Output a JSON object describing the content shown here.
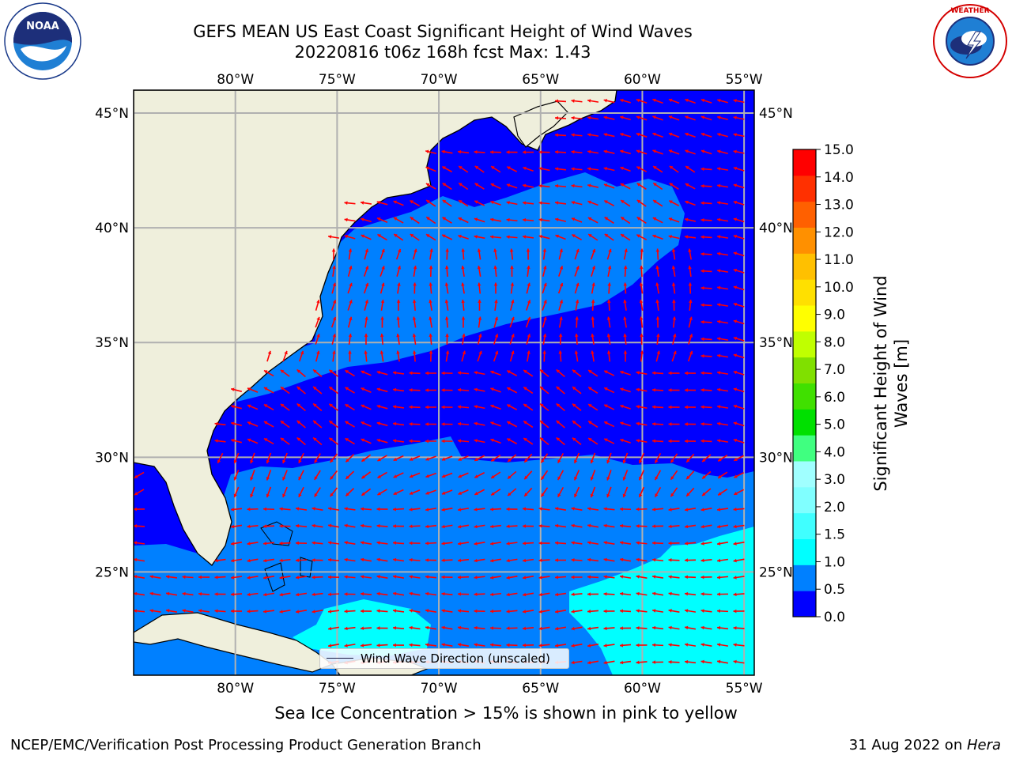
{
  "header": {
    "title_line1": "GEFS MEAN US East Coast Significant Height of Wind Waves",
    "title_line2": "20220816 t06z 168h fcst   Max: 1.43"
  },
  "logos": {
    "left": "noaa-logo",
    "right": "nws-logo"
  },
  "map": {
    "lon_labels": [
      "80°W",
      "75°W",
      "70°W",
      "65°W",
      "60°W",
      "55°W"
    ],
    "lat_labels": [
      "45°N",
      "40°N",
      "35°N",
      "30°N",
      "25°N"
    ],
    "lon_range": [
      -85,
      -54.5
    ],
    "lat_range": [
      20.5,
      46
    ],
    "colors": {
      "land": "#efefdc",
      "band_0_0_5": "#0000ff",
      "band_0_5_1": "#0080ff",
      "band_1_1_5": "#00ffff",
      "arrow": "#ff0000",
      "grid": "#b0b0b0"
    },
    "legend_label": "Wind Wave Direction (unscaled)"
  },
  "colorbar": {
    "label": "Significant Height of Wind Waves [m]",
    "ticks": [
      "0.0",
      "0.5",
      "1.0",
      "1.5",
      "2.0",
      "3.0",
      "4.0",
      "5.0",
      "6.0",
      "7.0",
      "8.0",
      "9.0",
      "10.0",
      "11.0",
      "12.0",
      "13.0",
      "14.0",
      "15.0"
    ],
    "colors": [
      "#0000ff",
      "#0080ff",
      "#00ffff",
      "#40ffff",
      "#80ffff",
      "#a0ffff",
      "#40ff80",
      "#00e000",
      "#40e000",
      "#80e000",
      "#c0ff00",
      "#ffff00",
      "#ffe000",
      "#ffc000",
      "#ff9000",
      "#ff6000",
      "#ff3000",
      "#ff0000"
    ]
  },
  "caption": "Sea Ice Concentration > 15% is shown in pink to yellow",
  "footer": {
    "left": "NCEP/EMC/Verification Post Processing Product Generation Branch",
    "right_date": "31 Aug 2022 on ",
    "right_machine": "Hera"
  }
}
